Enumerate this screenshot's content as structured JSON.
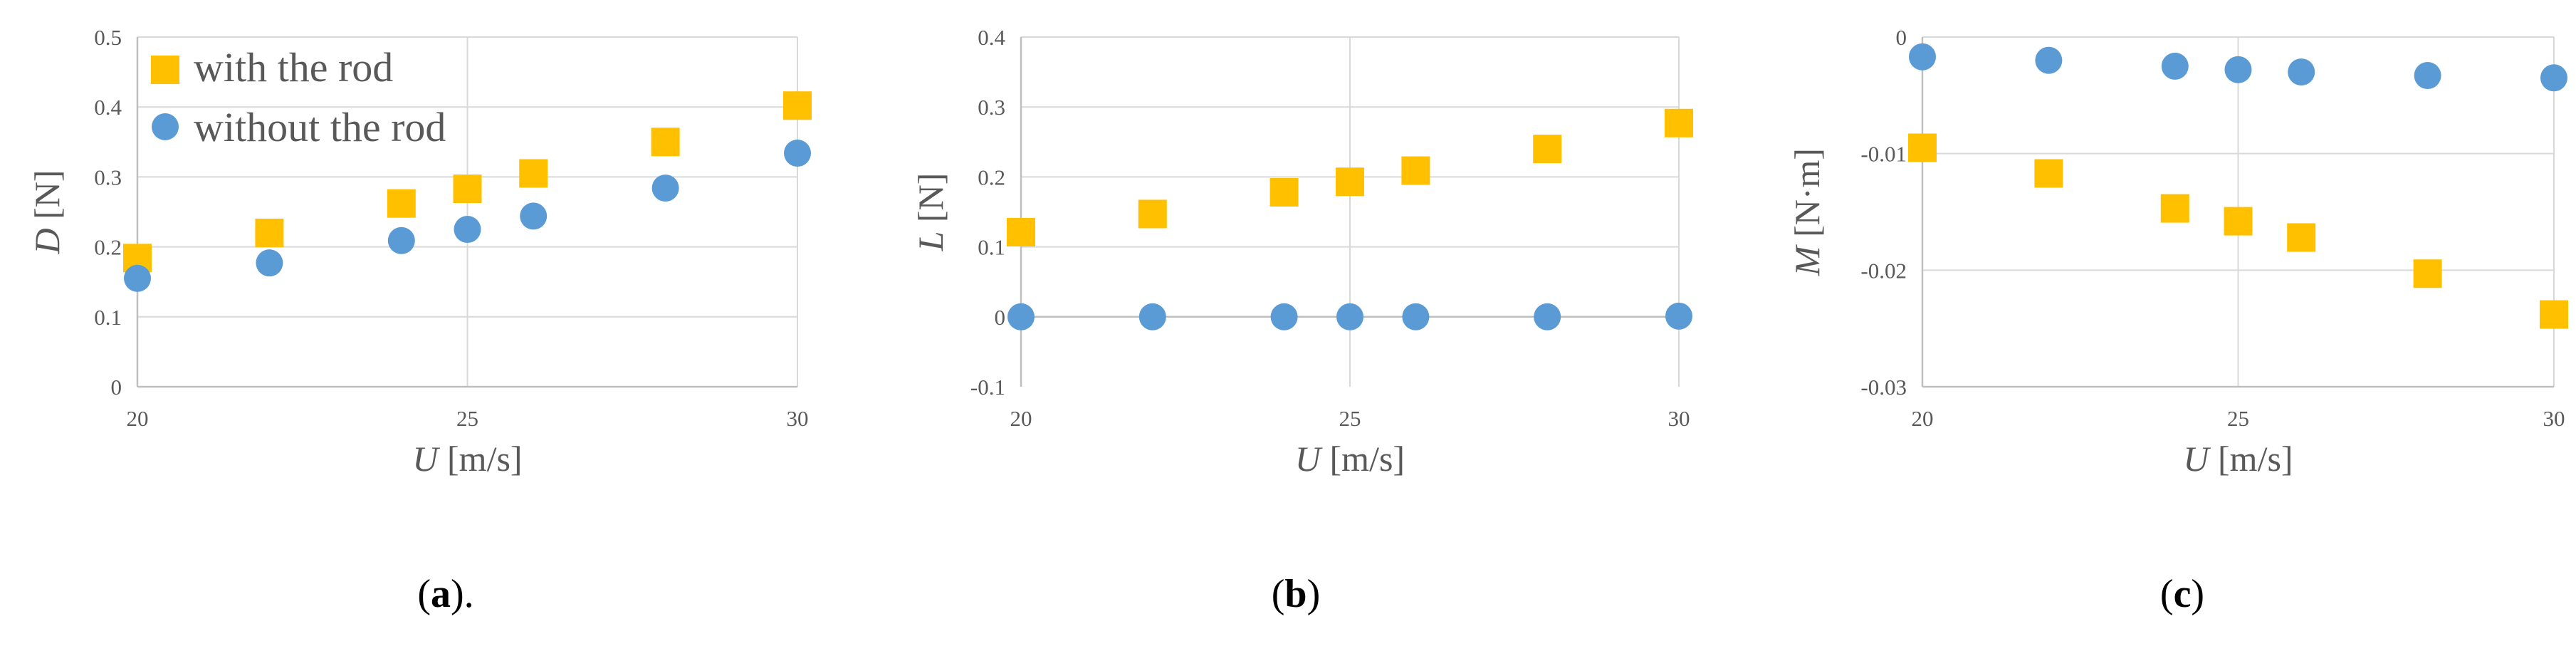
{
  "colors": {
    "with_rod": "#FFC000",
    "without_rod": "#5B9BD5",
    "grid": "#D9D9D9",
    "axis": "#BFBFBF",
    "tick_text": "#595959",
    "label_text": "#595959",
    "caption_text": "#000000"
  },
  "legend": {
    "with_label": "with the rod",
    "without_label": "without the rod"
  },
  "chart_data": [
    {
      "type": "scatter",
      "panel": "a",
      "caption_letter": "a",
      "caption_suffix": ").",
      "xlabel_var": "U",
      "xlabel_unit": " [m/s]",
      "ylabel_var": "D",
      "ylabel_unit": " [N]",
      "xlim": [
        20,
        30
      ],
      "ylim": [
        0,
        0.5
      ],
      "xticks": [
        20,
        25,
        30
      ],
      "yticks": [
        0,
        0.1,
        0.2,
        0.3,
        0.4,
        0.5
      ],
      "xtick_labels": [
        "20",
        "25",
        "30"
      ],
      "ytick_labels": [
        "0",
        "0.1",
        "0.2",
        "0.3",
        "0.4",
        "0.5"
      ],
      "grid": true,
      "legend_position": "top-left",
      "series": [
        {
          "name": "with the rod",
          "marker": "square",
          "x": [
            20,
            22,
            24,
            25,
            26,
            28,
            30
          ],
          "y": [
            0.184,
            0.22,
            0.262,
            0.283,
            0.305,
            0.35,
            0.402
          ]
        },
        {
          "name": "without the rod",
          "marker": "circle",
          "x": [
            20,
            22,
            24,
            25,
            26,
            28,
            30
          ],
          "y": [
            0.155,
            0.177,
            0.209,
            0.225,
            0.244,
            0.284,
            0.334
          ]
        }
      ]
    },
    {
      "type": "scatter",
      "panel": "b",
      "caption_letter": "b",
      "caption_suffix": ")",
      "xlabel_var": "U",
      "xlabel_unit": " [m/s]",
      "ylabel_var": "L",
      "ylabel_unit": " [N]",
      "xlim": [
        20,
        30
      ],
      "ylim": [
        -0.1,
        0.4
      ],
      "xticks": [
        20,
        25,
        30
      ],
      "yticks": [
        -0.1,
        0,
        0.1,
        0.2,
        0.3,
        0.4
      ],
      "xtick_labels": [
        "20",
        "25",
        "30"
      ],
      "ytick_labels": [
        "-0.1",
        "0",
        "0.1",
        "0.2",
        "0.3",
        "0.4"
      ],
      "grid": true,
      "series": [
        {
          "name": "with the rod",
          "marker": "square",
          "x": [
            20,
            22,
            24,
            25,
            26,
            28,
            30
          ],
          "y": [
            0.121,
            0.147,
            0.178,
            0.193,
            0.209,
            0.24,
            0.277
          ]
        },
        {
          "name": "without the rod",
          "marker": "circle",
          "x": [
            20,
            22,
            24,
            25,
            26,
            28,
            30
          ],
          "y": [
            0.0,
            0.0,
            0.0,
            0.0,
            0.0,
            0.0,
            0.001
          ]
        }
      ]
    },
    {
      "type": "scatter",
      "panel": "c",
      "caption_letter": "c",
      "caption_suffix": ")",
      "xlabel_var": "U",
      "xlabel_unit": " [m/s]",
      "ylabel_var": "M",
      "ylabel_unit": " [N·m]",
      "xlim": [
        20,
        30
      ],
      "ylim": [
        -0.03,
        0
      ],
      "xticks": [
        20,
        25,
        30
      ],
      "yticks": [
        -0.03,
        -0.02,
        -0.01,
        0
      ],
      "xtick_labels": [
        "20",
        "25",
        "30"
      ],
      "ytick_labels": [
        "-0.03",
        "-0.02",
        "-0.01",
        "0"
      ],
      "grid": true,
      "series": [
        {
          "name": "with the rod",
          "marker": "square",
          "x": [
            20,
            22,
            24,
            25,
            26,
            28,
            30
          ],
          "y": [
            -0.0095,
            -0.0117,
            -0.0147,
            -0.0158,
            -0.0172,
            -0.0203,
            -0.0238
          ]
        },
        {
          "name": "without the rod",
          "marker": "circle",
          "x": [
            20,
            22,
            24,
            25,
            26,
            28,
            30
          ],
          "y": [
            -0.0017,
            -0.002,
            -0.0025,
            -0.0028,
            -0.003,
            -0.0033,
            -0.0035
          ]
        }
      ]
    }
  ]
}
